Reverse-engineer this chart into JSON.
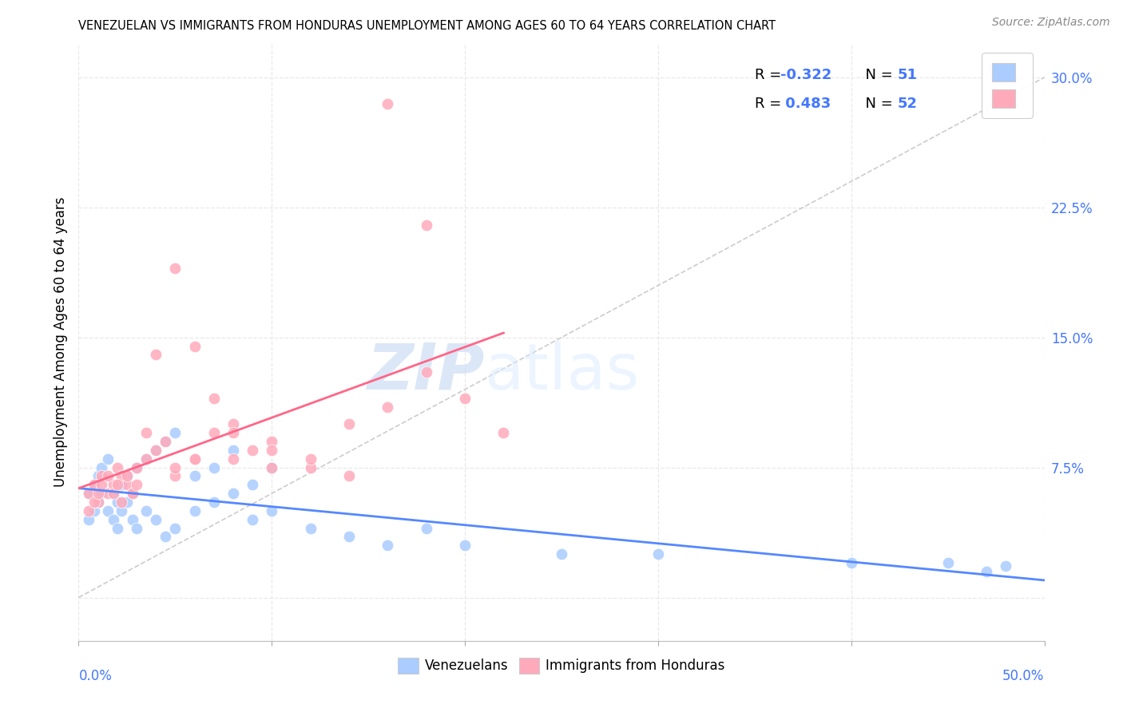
{
  "title": "VENEZUELAN VS IMMIGRANTS FROM HONDURAS UNEMPLOYMENT AMONG AGES 60 TO 64 YEARS CORRELATION CHART",
  "source": "Source: ZipAtlas.com",
  "ylabel": "Unemployment Among Ages 60 to 64 years",
  "xlim": [
    0.0,
    0.5
  ],
  "ylim": [
    -0.025,
    0.32
  ],
  "yticks": [
    0.0,
    0.075,
    0.15,
    0.225,
    0.3
  ],
  "ytick_labels": [
    "",
    "7.5%",
    "15.0%",
    "22.5%",
    "30.0%"
  ],
  "blue_color": "#aaccff",
  "pink_color": "#ffaabb",
  "blue_line_color": "#5588ff",
  "pink_line_color": "#ff6688",
  "diagonal_color": "#cccccc",
  "watermark_zip": "ZIP",
  "watermark_atlas": "atlas",
  "r_blue": "-0.322",
  "n_blue": "51",
  "r_pink": "0.483",
  "n_pink": "52",
  "accent_blue": "#4477ff",
  "text_color": "#333333",
  "grid_color": "#e8e8e8",
  "venezuelan_x": [
    0.005,
    0.008,
    0.01,
    0.012,
    0.015,
    0.018,
    0.02,
    0.022,
    0.025,
    0.028,
    0.005,
    0.008,
    0.01,
    0.012,
    0.015,
    0.018,
    0.02,
    0.022,
    0.025,
    0.028,
    0.03,
    0.035,
    0.04,
    0.045,
    0.05,
    0.06,
    0.07,
    0.08,
    0.09,
    0.1,
    0.03,
    0.035,
    0.04,
    0.045,
    0.05,
    0.06,
    0.07,
    0.08,
    0.09,
    0.1,
    0.12,
    0.14,
    0.16,
    0.18,
    0.2,
    0.25,
    0.3,
    0.4,
    0.45,
    0.47,
    0.48
  ],
  "venezuelan_y": [
    0.06,
    0.065,
    0.07,
    0.075,
    0.08,
    0.06,
    0.055,
    0.065,
    0.07,
    0.06,
    0.045,
    0.05,
    0.055,
    0.06,
    0.05,
    0.045,
    0.04,
    0.05,
    0.055,
    0.045,
    0.075,
    0.08,
    0.085,
    0.09,
    0.095,
    0.07,
    0.075,
    0.085,
    0.065,
    0.075,
    0.04,
    0.05,
    0.045,
    0.035,
    0.04,
    0.05,
    0.055,
    0.06,
    0.045,
    0.05,
    0.04,
    0.035,
    0.03,
    0.04,
    0.03,
    0.025,
    0.025,
    0.02,
    0.02,
    0.015,
    0.018
  ],
  "honduras_x": [
    0.005,
    0.008,
    0.01,
    0.012,
    0.015,
    0.018,
    0.02,
    0.022,
    0.025,
    0.028,
    0.005,
    0.008,
    0.01,
    0.012,
    0.015,
    0.018,
    0.02,
    0.022,
    0.025,
    0.028,
    0.03,
    0.035,
    0.04,
    0.045,
    0.05,
    0.06,
    0.07,
    0.08,
    0.09,
    0.1,
    0.03,
    0.035,
    0.04,
    0.05,
    0.06,
    0.07,
    0.08,
    0.1,
    0.12,
    0.14,
    0.16,
    0.18,
    0.2,
    0.22,
    0.05,
    0.06,
    0.08,
    0.1,
    0.12,
    0.14,
    0.16,
    0.18
  ],
  "honduras_y": [
    0.06,
    0.065,
    0.055,
    0.07,
    0.06,
    0.065,
    0.075,
    0.07,
    0.065,
    0.06,
    0.05,
    0.055,
    0.06,
    0.065,
    0.07,
    0.06,
    0.065,
    0.055,
    0.07,
    0.06,
    0.075,
    0.08,
    0.085,
    0.09,
    0.07,
    0.08,
    0.095,
    0.1,
    0.085,
    0.09,
    0.065,
    0.095,
    0.14,
    0.075,
    0.08,
    0.115,
    0.095,
    0.085,
    0.075,
    0.1,
    0.11,
    0.13,
    0.115,
    0.095,
    0.19,
    0.145,
    0.08,
    0.075,
    0.08,
    0.07,
    0.285,
    0.215
  ]
}
